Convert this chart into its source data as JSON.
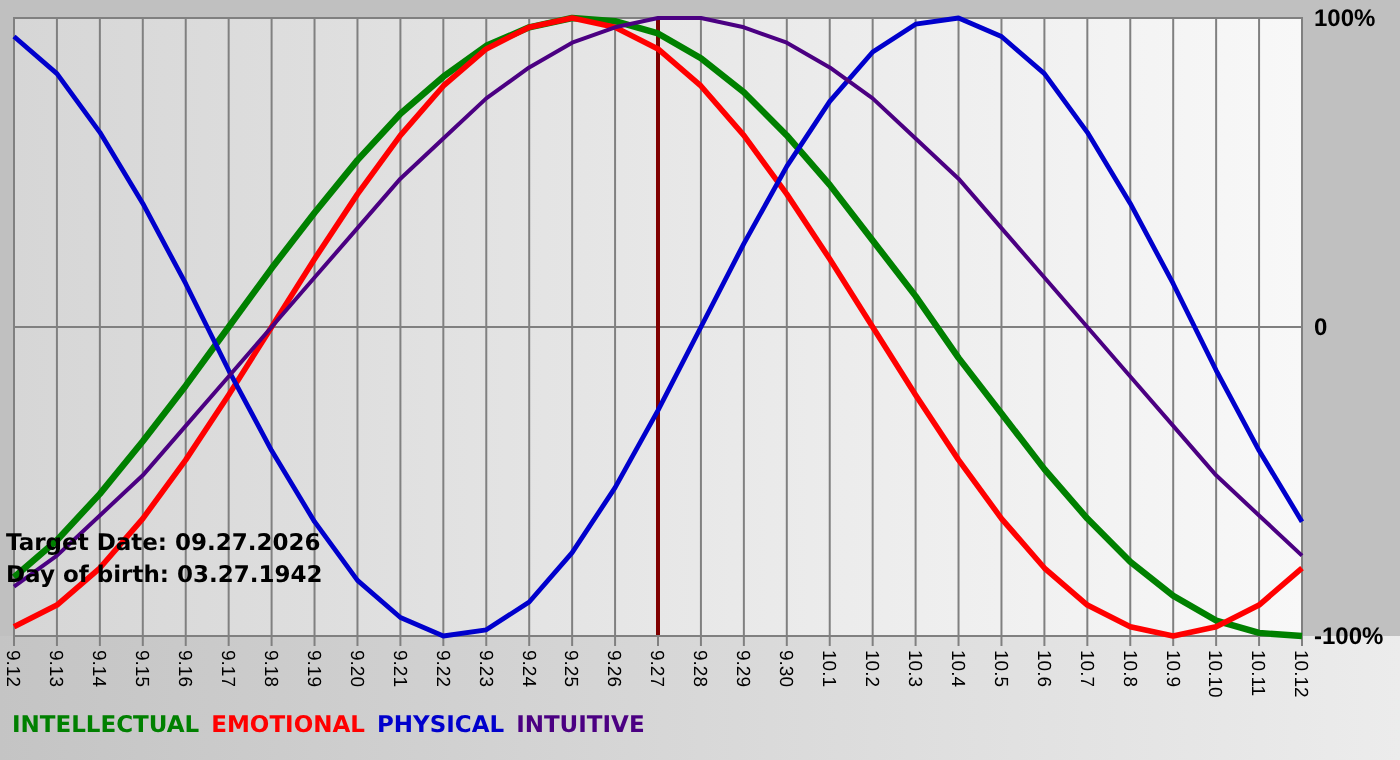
{
  "chart_data": {
    "type": "line",
    "categories": [
      "9.12",
      "9.13",
      "9.14",
      "9.15",
      "9.16",
      "9.17",
      "9.18",
      "9.19",
      "9.20",
      "9.21",
      "9.22",
      "9.23",
      "9.24",
      "9.25",
      "9.26",
      "9.27",
      "9.28",
      "9.29",
      "9.30",
      "10.1",
      "10.2",
      "10.3",
      "10.4",
      "10.5",
      "10.6",
      "10.7",
      "10.8",
      "10.9",
      "10.10",
      "10.11",
      "10.12"
    ],
    "series": [
      {
        "name": "INTELLECTUAL",
        "color": "#008000",
        "values": [
          -81,
          -69,
          -54,
          -37,
          -19,
          0,
          19,
          37,
          54,
          69,
          81,
          91,
          97,
          100,
          99,
          95,
          87,
          76,
          62,
          46,
          28,
          10,
          -10,
          -28,
          -46,
          -62,
          -76,
          -87,
          -95,
          -99,
          -100
        ]
      },
      {
        "name": "EMOTIONAL",
        "color": "#ff0000",
        "values": [
          -97,
          -90,
          -78,
          -62,
          -43,
          -22,
          0,
          22,
          43,
          62,
          78,
          90,
          97,
          100,
          97,
          90,
          78,
          62,
          43,
          22,
          0,
          -22,
          -43,
          -62,
          -78,
          -90,
          -97,
          -100,
          -97,
          -90,
          -78
        ]
      },
      {
        "name": "PHYSICAL",
        "color": "#0000cc",
        "values": [
          94,
          82,
          63,
          40,
          14,
          -14,
          -40,
          -63,
          -82,
          -94,
          -100,
          -98,
          -89,
          -73,
          -52,
          -27,
          0,
          27,
          52,
          73,
          89,
          98,
          100,
          94,
          82,
          63,
          40,
          14,
          -14,
          -40,
          -63
        ]
      },
      {
        "name": "INTUITIVE",
        "color": "#4b0082",
        "values": [
          -84,
          -74,
          -61,
          -48,
          -32,
          -16,
          0,
          16,
          32,
          48,
          61,
          74,
          84,
          92,
          97,
          100,
          100,
          97,
          92,
          84,
          74,
          61,
          48,
          32,
          16,
          0,
          -16,
          -32,
          -48,
          -61,
          -74
        ]
      }
    ],
    "ylim": [
      -100,
      100
    ],
    "yticks": [
      {
        "value": 100,
        "label": "100%"
      },
      0,
      {
        "value": -100,
        "label": "-100%"
      }
    ],
    "grid": true,
    "legend": "bottom left",
    "marker": "none",
    "line_style": "solid",
    "ref_lines": [
      {
        "axis": "x",
        "value": "9.27",
        "color": "#800000"
      }
    ],
    "annotations": [
      "Target Date: 09.27.2026",
      "Day of birth: 03.27.1942"
    ]
  }
}
